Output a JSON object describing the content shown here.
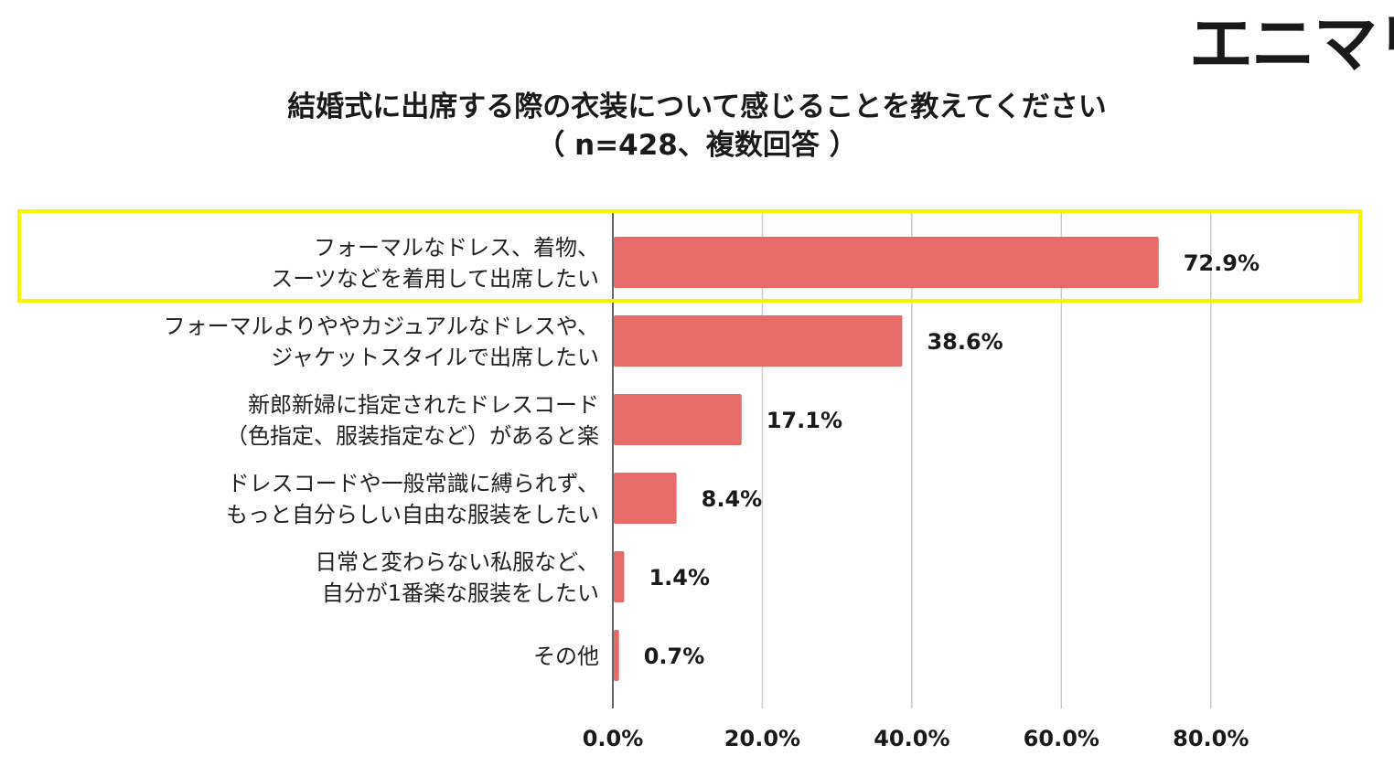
{
  "logo": "エニマリ",
  "chart_data": {
    "type": "bar",
    "orientation": "horizontal",
    "title": "結婚式に出席する際の衣装について感じることを教えてください",
    "subtitle": "（ n=428、複数回答 ）",
    "categories": [
      [
        "フォーマルなドレス、着物、",
        "スーツなどを着用して出席したい"
      ],
      [
        "フォーマルよりややカジュアルなドレスや、",
        "ジャケットスタイルで出席したい"
      ],
      [
        "新郎新婦に指定されたドレスコード",
        "（色指定、服装指定など）があると楽"
      ],
      [
        "ドレスコードや一般常識に縛られず、",
        "もっと自分らしい自由な服装をしたい"
      ],
      [
        "日常と変わらない私服など、",
        "自分が1番楽な服装をしたい"
      ],
      [
        "その他"
      ]
    ],
    "values": [
      72.9,
      38.6,
      17.1,
      8.4,
      1.4,
      0.7
    ],
    "value_labels": [
      "72.9%",
      "38.6%",
      "17.1%",
      "8.4%",
      "1.4%",
      "0.7%"
    ],
    "xlim": [
      0,
      100
    ],
    "xticks": [
      0,
      20,
      40,
      60,
      80
    ],
    "xtick_labels": [
      "0.0%",
      "20.0%",
      "40.0%",
      "60.0%",
      "80.0%"
    ],
    "grid": true,
    "bar_color": "#e76b69",
    "highlight_color": "#f5f500",
    "highlight_index": 0
  }
}
